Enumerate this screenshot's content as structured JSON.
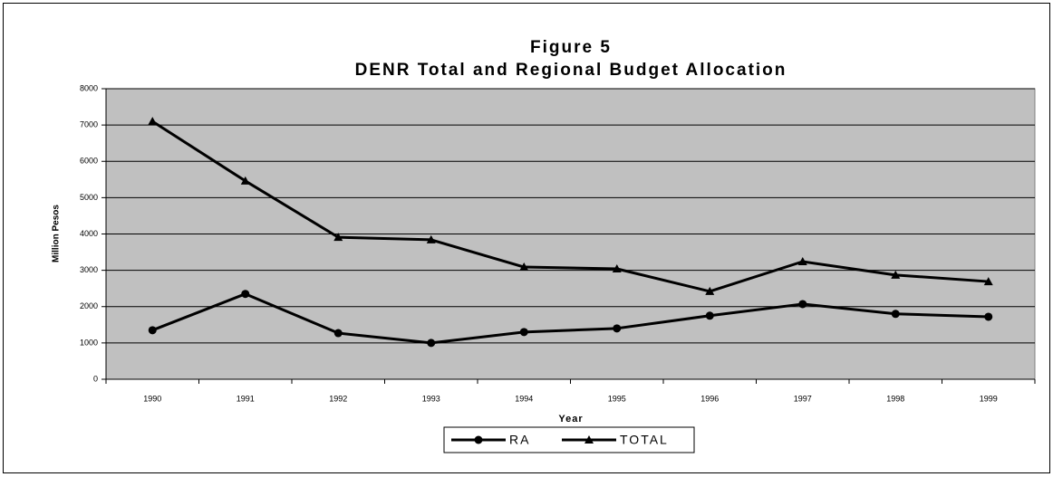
{
  "chart_data": {
    "type": "line",
    "title": "Figure 5",
    "subtitle": "DENR Total and Regional Budget Allocation",
    "x_label": "Year",
    "y_label": "Million Pesos",
    "categories": [
      "1990",
      "1991",
      "1992",
      "1993",
      "1994",
      "1995",
      "1996",
      "1997",
      "1998",
      "1999"
    ],
    "series": [
      {
        "name": "RA",
        "color": "#000000",
        "marker": "circle",
        "values": [
          1350,
          2350,
          1270,
          1000,
          1300,
          1400,
          1750,
          2070,
          1800,
          1720
        ]
      },
      {
        "name": "TOTAL",
        "color": "#000000",
        "marker": "triangle",
        "values": [
          7100,
          5460,
          3910,
          3840,
          3090,
          3040,
          2420,
          3240,
          2870,
          2690
        ]
      }
    ],
    "ylim": [
      0,
      8000
    ],
    "yticks": [
      0,
      1000,
      2000,
      3000,
      4000,
      5000,
      6000,
      7000,
      8000
    ],
    "grid": true,
    "legend": "bottom"
  }
}
